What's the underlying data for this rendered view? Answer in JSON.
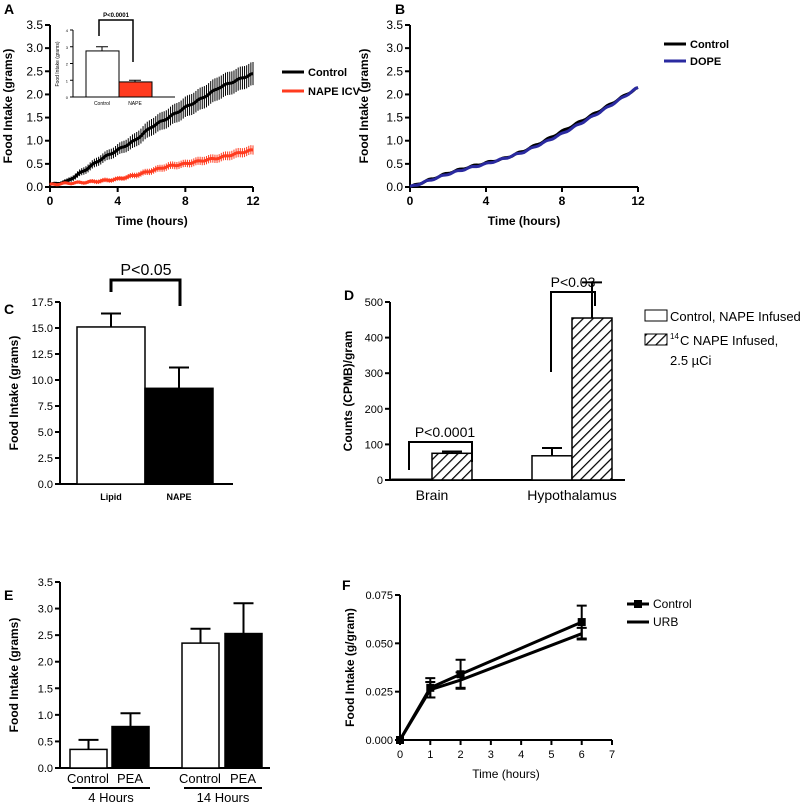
{
  "chart_data": [
    {
      "panel": "A",
      "type": "line",
      "xlabel": "Time (hours)",
      "ylabel": "Food Intake (grams)",
      "xlim": [
        0,
        12
      ],
      "ylim": [
        0,
        3.5
      ],
      "xticks": [
        0,
        4,
        8,
        12
      ],
      "yticks": [
        0,
        0.5,
        1.0,
        1.5,
        2.0,
        2.5,
        3.0,
        3.5
      ],
      "x": [
        0,
        1,
        2,
        3,
        4,
        5,
        6,
        7,
        8,
        9,
        10,
        11,
        12
      ],
      "series": [
        {
          "name": "Control",
          "color": "#000000",
          "values": [
            0.05,
            0.12,
            0.35,
            0.6,
            0.8,
            1.0,
            1.3,
            1.5,
            1.72,
            1.92,
            2.15,
            2.3,
            2.45
          ],
          "errors": [
            0.02,
            0.05,
            0.08,
            0.1,
            0.12,
            0.15,
            0.18,
            0.2,
            0.22,
            0.24,
            0.25,
            0.25,
            0.25
          ]
        },
        {
          "name": "NAPE ICV",
          "color": "#ff3b1f",
          "values": [
            0.05,
            0.08,
            0.1,
            0.13,
            0.17,
            0.25,
            0.35,
            0.45,
            0.5,
            0.57,
            0.63,
            0.72,
            0.8
          ],
          "errors": [
            0.02,
            0.03,
            0.04,
            0.05,
            0.05,
            0.06,
            0.07,
            0.08,
            0.08,
            0.09,
            0.09,
            0.1,
            0.1
          ]
        }
      ],
      "inset": {
        "type": "bar",
        "ylabel": "Food Intake (grams)",
        "ylim": [
          0,
          4
        ],
        "yticks": [
          0,
          1,
          2,
          3,
          4
        ],
        "categories": [
          "Control",
          "NAPE"
        ],
        "values": [
          2.75,
          0.9
        ],
        "errors": [
          0.25,
          0.1
        ],
        "colors": [
          "#ffffff",
          "#ff3b1f"
        ],
        "annotation": "P<0.0001"
      }
    },
    {
      "panel": "B",
      "type": "line",
      "xlabel": "Time (hours)",
      "ylabel": "Food Intake (grams)",
      "xlim": [
        0,
        12
      ],
      "ylim": [
        0,
        3.5
      ],
      "xticks": [
        0,
        4,
        8,
        12
      ],
      "yticks": [
        0,
        0.5,
        1.0,
        1.5,
        2.0,
        2.5,
        3.0,
        3.5
      ],
      "x": [
        0,
        1,
        2,
        3,
        4,
        5,
        6,
        7,
        8,
        9,
        10,
        11,
        12
      ],
      "series": [
        {
          "name": "Control",
          "color": "#000000",
          "values": [
            0,
            0.15,
            0.3,
            0.42,
            0.52,
            0.62,
            0.78,
            0.98,
            1.2,
            1.42,
            1.65,
            1.9,
            2.15
          ]
        },
        {
          "name": "DOPE",
          "color": "#2a2aa0",
          "values": [
            0,
            0.14,
            0.28,
            0.4,
            0.5,
            0.62,
            0.76,
            0.95,
            1.15,
            1.38,
            1.62,
            1.88,
            2.15
          ]
        }
      ]
    },
    {
      "panel": "C",
      "type": "bar",
      "ylabel": "Food Intake (grams)",
      "ylim": [
        0,
        17.5
      ],
      "yticks": [
        0,
        2.5,
        5.0,
        7.5,
        10.0,
        12.5,
        15.0,
        17.5
      ],
      "categories": [
        "Lipid",
        "NAPE"
      ],
      "values": [
        15.1,
        9.2
      ],
      "errors": [
        1.3,
        2.0
      ],
      "colors": [
        "#ffffff",
        "#000000"
      ],
      "annotation": "P<0.05"
    },
    {
      "panel": "D",
      "type": "bar",
      "ylabel": "Counts (CPMB)/gram",
      "ylim": [
        0,
        500
      ],
      "yticks": [
        0,
        100,
        200,
        300,
        400,
        500
      ],
      "categories": [
        "Brain",
        "Hypothalamus"
      ],
      "series": [
        {
          "name": "Control, NAPE Infused",
          "values": [
            2,
            68
          ],
          "errors": [
            0,
            22
          ]
        },
        {
          "name": "14C NAPE Infused, 2.5 µCi",
          "legend_sup": "14",
          "legend_main": "C NAPE Infused,",
          "legend_line2": "2.5 µCi",
          "values": [
            75,
            455
          ],
          "errors": [
            5,
            100
          ]
        }
      ],
      "annotations": [
        "P<0.0001",
        "P<0.03"
      ]
    },
    {
      "panel": "E",
      "type": "bar",
      "ylabel": "Food Intake (grams)",
      "ylim": [
        0,
        3.5
      ],
      "yticks": [
        0,
        0.5,
        1.0,
        1.5,
        2.0,
        2.5,
        3.0,
        3.5
      ],
      "categories": [
        "Control",
        "PEA",
        "Control",
        "PEA"
      ],
      "groups": [
        "4 Hours",
        "14 Hours"
      ],
      "values": [
        0.35,
        0.78,
        2.35,
        2.53
      ],
      "errors": [
        0.18,
        0.25,
        0.27,
        0.57
      ],
      "colors": [
        "#ffffff",
        "#000000",
        "#ffffff",
        "#000000"
      ]
    },
    {
      "panel": "F",
      "type": "line",
      "xlabel": "Time (hours)",
      "ylabel": "Food Intake (g/gram)",
      "xlim": [
        0,
        7
      ],
      "ylim": [
        0,
        0.075
      ],
      "xticks": [
        0,
        1,
        2,
        3,
        4,
        5,
        6,
        7
      ],
      "yticks": [
        "0.000",
        "0.025",
        "0.050",
        "0.075"
      ],
      "x": [
        0,
        1,
        2,
        6
      ],
      "series": [
        {
          "name": "Control",
          "color": "#000000",
          "values": [
            0,
            0.027,
            0.034,
            0.061
          ],
          "errors": [
            0,
            0.005,
            0.0075,
            0.0085
          ]
        },
        {
          "name": "URB",
          "color": "#000000",
          "values": [
            0,
            0.026,
            0.031,
            0.055
          ],
          "errors": [
            0,
            0.004,
            0.004,
            0.003
          ]
        }
      ]
    }
  ]
}
